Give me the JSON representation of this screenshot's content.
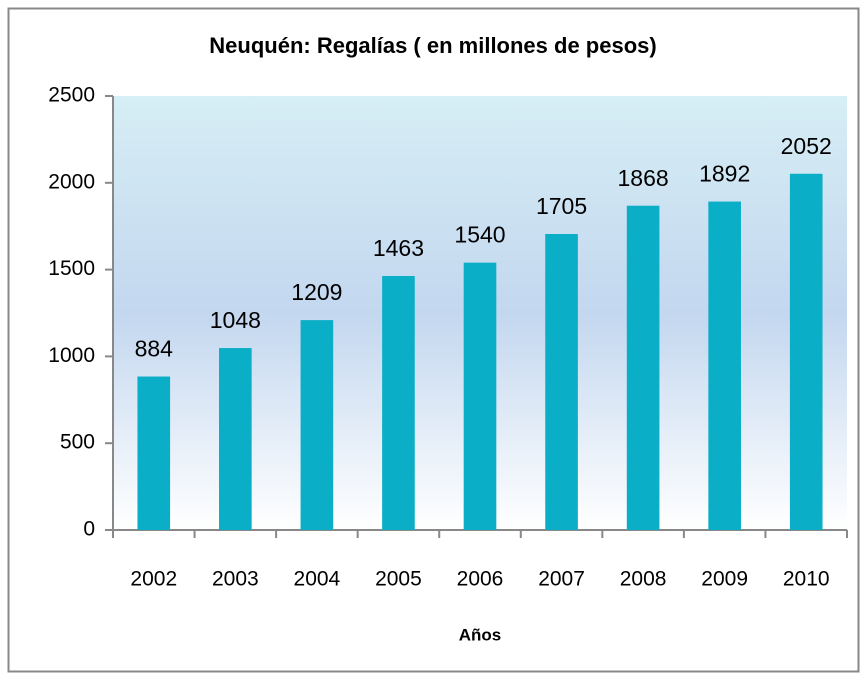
{
  "chart_data": {
    "type": "bar",
    "title": "Neuquén: Regalías ( en millones de pesos)",
    "x_label": "Años",
    "categories": [
      "2002",
      "2003",
      "2004",
      "2005",
      "2006",
      "2007",
      "2008",
      "2009",
      "2010"
    ],
    "values": [
      884,
      1048,
      1209,
      1463,
      1540,
      1705,
      1868,
      1892,
      2052
    ],
    "color": "#0aaec6",
    "ylim": [
      0,
      2500
    ],
    "yticks": [
      0,
      500,
      1000,
      1500,
      2000,
      2500
    ],
    "grid": false
  }
}
